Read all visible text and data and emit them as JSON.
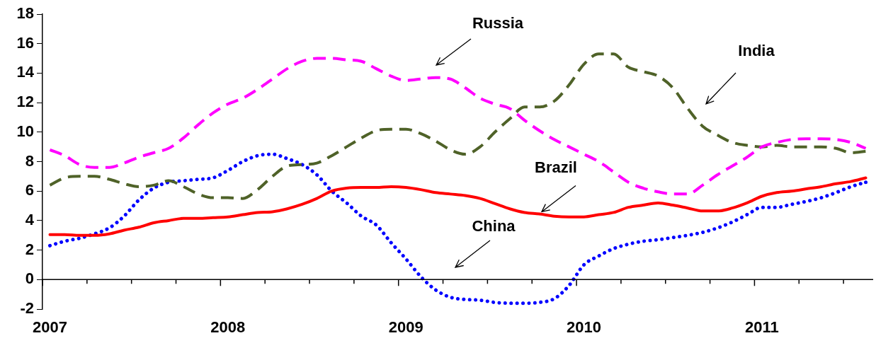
{
  "chart_data": {
    "type": "line",
    "categories": [
      "2007",
      null,
      null,
      null,
      null,
      null,
      null,
      null,
      null,
      null,
      null,
      null,
      "2008",
      null,
      null,
      null,
      null,
      null,
      null,
      null,
      null,
      null,
      null,
      null,
      "2009",
      null,
      null,
      null,
      null,
      null,
      null,
      null,
      null,
      null,
      null,
      null,
      "2010",
      null,
      null,
      null,
      null,
      null,
      null,
      null,
      null,
      null,
      null,
      null,
      "2011",
      null,
      null,
      null,
      null,
      null,
      null,
      null
    ],
    "series": [
      {
        "color": "#ff0000",
        "line_style": "solid",
        "values": [
          3.05,
          3.05,
          3.0,
          3.0,
          3.1,
          3.35,
          3.55,
          3.85,
          4.0,
          4.15,
          4.15,
          4.2,
          4.25,
          4.4,
          4.55,
          4.6,
          4.8,
          5.1,
          5.5,
          6.0,
          6.2,
          6.25,
          6.25,
          6.3,
          6.25,
          6.1,
          5.9,
          5.8,
          5.7,
          5.5,
          5.15,
          4.8,
          4.55,
          4.45,
          4.3,
          4.25,
          4.25,
          4.4,
          4.55,
          4.9,
          5.05,
          5.2,
          5.05,
          4.85,
          4.65,
          4.65,
          4.85,
          5.2,
          5.65,
          5.9,
          6.0,
          6.15,
          6.3,
          6.5,
          6.65,
          6.9
        ]
      },
      {
        "color": "#ff00ff",
        "line_style": "dashed",
        "values": [
          8.8,
          8.4,
          7.8,
          7.6,
          7.6,
          7.9,
          8.3,
          8.6,
          8.9,
          9.6,
          10.5,
          11.3,
          11.9,
          12.3,
          12.9,
          13.6,
          14.3,
          14.8,
          15.0,
          15.0,
          14.9,
          14.8,
          14.3,
          13.8,
          13.5,
          13.6,
          13.7,
          13.6,
          13.0,
          12.3,
          11.9,
          11.6,
          10.8,
          10.1,
          9.5,
          9.0,
          8.5,
          8.0,
          7.3,
          6.6,
          6.2,
          5.95,
          5.8,
          5.8,
          6.4,
          7.1,
          7.7,
          8.3,
          9.0,
          9.3,
          9.5,
          9.55,
          9.55,
          9.5,
          9.3,
          8.9
        ]
      },
      {
        "color": "#4f6228",
        "line_style": "dashed",
        "values": [
          6.4,
          6.9,
          7.0,
          7.0,
          6.8,
          6.5,
          6.3,
          6.4,
          6.7,
          6.3,
          5.8,
          5.55,
          5.55,
          5.5,
          6.1,
          7.0,
          7.7,
          7.8,
          7.9,
          8.4,
          9.0,
          9.6,
          10.1,
          10.2,
          10.2,
          9.9,
          9.4,
          8.8,
          8.5,
          9.0,
          10.0,
          10.9,
          11.7,
          11.7,
          12.1,
          13.2,
          14.6,
          15.3,
          15.3,
          14.4,
          14.1,
          13.8,
          13.0,
          11.6,
          10.4,
          9.8,
          9.3,
          9.1,
          9.0,
          9.1,
          9.0,
          9.0,
          9.0,
          8.9,
          8.6,
          8.7
        ]
      },
      {
        "color": "#0000ff",
        "line_style": "dotted",
        "values": [
          2.3,
          2.6,
          2.8,
          3.1,
          3.5,
          4.3,
          5.4,
          6.2,
          6.6,
          6.7,
          6.8,
          6.9,
          7.4,
          8.0,
          8.4,
          8.5,
          8.2,
          7.8,
          7.1,
          6.0,
          5.2,
          4.3,
          3.7,
          2.5,
          1.4,
          0.2,
          -0.7,
          -1.2,
          -1.35,
          -1.4,
          -1.55,
          -1.6,
          -1.6,
          -1.55,
          -1.3,
          -0.4,
          1.0,
          1.6,
          2.1,
          2.4,
          2.6,
          2.7,
          2.85,
          3.0,
          3.2,
          3.5,
          3.9,
          4.4,
          4.9,
          4.9,
          5.1,
          5.3,
          5.55,
          5.9,
          6.3,
          6.6
        ]
      }
    ],
    "annotations": [
      "Russia",
      "India",
      {
        "text": "Brazil",
        "y": 4.6
      },
      "China"
    ],
    "ylim": [
      -2,
      18
    ],
    "yticks": [
      -2,
      0,
      2,
      4,
      6,
      8,
      10,
      12,
      14,
      16,
      18
    ],
    "grid": false,
    "legend": false
  }
}
